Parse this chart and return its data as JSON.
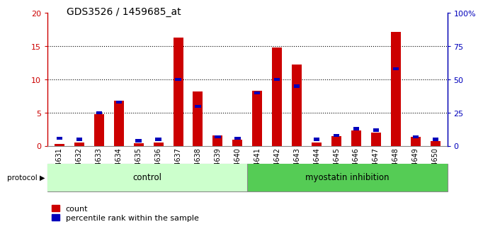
{
  "title": "GDS3526 / 1459685_at",
  "samples": [
    "GSM344631",
    "GSM344632",
    "GSM344633",
    "GSM344634",
    "GSM344635",
    "GSM344636",
    "GSM344637",
    "GSM344638",
    "GSM344639",
    "GSM344640",
    "GSM344641",
    "GSM344642",
    "GSM344643",
    "GSM344644",
    "GSM344645",
    "GSM344646",
    "GSM344647",
    "GSM344648",
    "GSM344649",
    "GSM344650"
  ],
  "count_values": [
    0.3,
    0.5,
    4.8,
    6.8,
    0.4,
    0.5,
    16.3,
    8.2,
    1.6,
    1.0,
    8.3,
    14.8,
    12.2,
    0.5,
    1.5,
    2.3,
    2.0,
    17.2,
    1.4,
    0.7
  ],
  "percentile_values": [
    6,
    5,
    25,
    33,
    4,
    5,
    50,
    30,
    7,
    6,
    40,
    50,
    45,
    5,
    8,
    13,
    12,
    58,
    7,
    5
  ],
  "protocol_groups": [
    {
      "label": "control",
      "start": 0,
      "end": 10,
      "color": "#ccffcc"
    },
    {
      "label": "myostatin inhibition",
      "start": 10,
      "end": 20,
      "color": "#55cc55"
    }
  ],
  "bar_color": "#cc0000",
  "marker_color": "#0000bb",
  "ylim_left": [
    0,
    20
  ],
  "ylim_right": [
    0,
    100
  ],
  "yticks_left": [
    0,
    5,
    10,
    15,
    20
  ],
  "ytick_labels_left": [
    "0",
    "5",
    "10",
    "15",
    "20"
  ],
  "ytick_labels_right": [
    "0",
    "25",
    "50",
    "75",
    "100%"
  ],
  "grid_dotted_at": [
    5,
    10,
    15
  ],
  "bg_color": "#ffffff",
  "title_fontsize": 10,
  "label_fontsize": 7,
  "legend_count_label": "count",
  "legend_pct_label": "percentile rank within the sample"
}
